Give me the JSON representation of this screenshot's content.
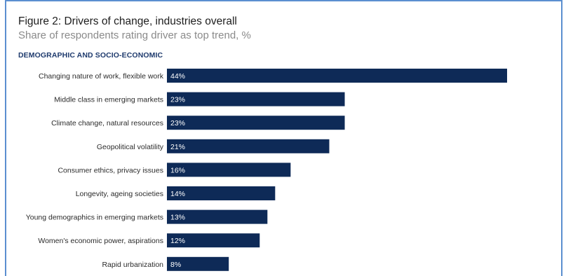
{
  "figure": {
    "title": "Figure 2: Drivers of change, industries overall",
    "subtitle": "Share of respondents rating driver as top trend, %",
    "section_label": "DEMOGRAPHIC AND SOCIO-ECONOMIC"
  },
  "colors": {
    "bar": "#0e2a57",
    "frame": "#5b8fd0",
    "section_label": "#1e3a6d"
  },
  "chart_data": {
    "type": "bar",
    "orientation": "horizontal",
    "title": "Figure 2: Drivers of change, industries overall",
    "subtitle": "Share of respondents rating driver as top trend, %",
    "categories": [
      "Changing nature of work, flexible work",
      "Middle class in emerging markets",
      "Climate change, natural resources",
      "Geopolitical volatility",
      "Consumer ethics, privacy issues",
      "Longevity, ageing societies",
      "Young demographics in emerging markets",
      "Women's economic power, aspirations",
      "Rapid urbanization"
    ],
    "values": [
      44,
      23,
      23,
      21,
      16,
      14,
      13,
      12,
      8
    ],
    "value_labels": [
      "44%",
      "23%",
      "23%",
      "21%",
      "16%",
      "14%",
      "13%",
      "12%",
      "8%"
    ],
    "xlim": [
      0,
      44
    ],
    "grid": false,
    "legend": "none"
  }
}
